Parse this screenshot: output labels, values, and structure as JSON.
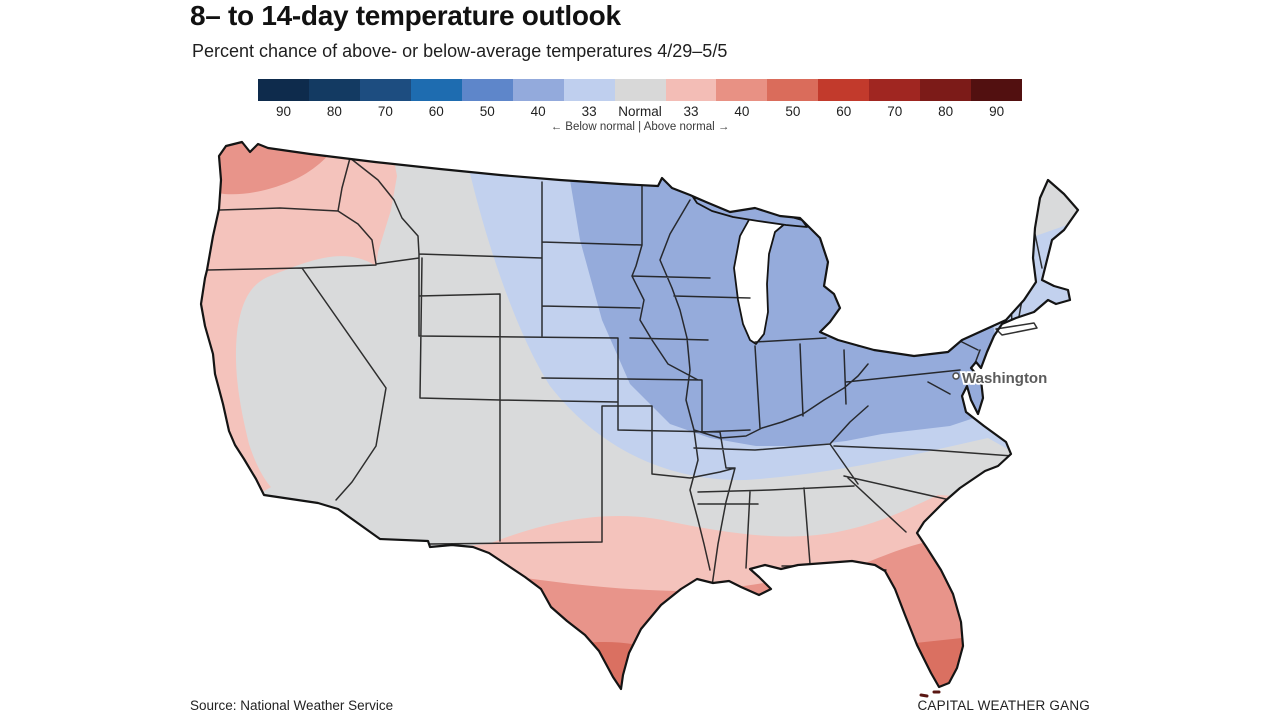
{
  "header": {
    "title": "8– to 14-day temperature outlook",
    "subtitle": "Percent chance of above- or below-average temperatures 4/29–5/5"
  },
  "legend": {
    "cells": [
      {
        "label": "90",
        "color": "#0e2b4c"
      },
      {
        "label": "80",
        "color": "#133a62"
      },
      {
        "label": "70",
        "color": "#1d4d80"
      },
      {
        "label": "60",
        "color": "#1e6cb0"
      },
      {
        "label": "50",
        "color": "#5e86ca"
      },
      {
        "label": "40",
        "color": "#93aadc"
      },
      {
        "label": "33",
        "color": "#bfcfee"
      },
      {
        "label": "Normal",
        "color": "#d8d8d8"
      },
      {
        "label": "33",
        "color": "#f3bdb6"
      },
      {
        "label": "40",
        "color": "#e89184"
      },
      {
        "label": "50",
        "color": "#da6c5b"
      },
      {
        "label": "60",
        "color": "#c23a2c"
      },
      {
        "label": "70",
        "color": "#a02621"
      },
      {
        "label": "80",
        "color": "#7c1b18"
      },
      {
        "label": "90",
        "color": "#521010"
      }
    ],
    "note": "← Below normal | Above normal →"
  },
  "map": {
    "city": {
      "label": "Washington"
    },
    "fills": {
      "base_normal": "#d9dadb",
      "below_33": "#c2d1ee",
      "below_40": "#95abdb",
      "above_33": "#f4c3bc",
      "above_40": "#e8948a",
      "above_50": "#da7061"
    },
    "regions_summary": [
      {
        "area": "Western Washington / Pacific Northwest core",
        "outlook": "40% chance above normal"
      },
      {
        "area": "Oregon, northern California coast, western Idaho",
        "outlook": "33% chance above normal"
      },
      {
        "area": "Great Basin and Southwest interior",
        "outlook": "Normal"
      },
      {
        "area": "Northern Plains, Upper Midwest, Great Lakes, Ohio Valley, Mid-Atlantic",
        "outlook": "40% chance below normal"
      },
      {
        "area": "Band from eastern Montana through Kansas and Tennessee to New England",
        "outlook": "33% chance below normal"
      },
      {
        "area": "Southern Plains and Gulf Coast into southern Georgia",
        "outlook": "33% chance above normal"
      },
      {
        "area": "Central/south Texas, Louisiana coast, Florida peninsula",
        "outlook": "40% chance above normal"
      },
      {
        "area": "Southern tip of Texas and South Florida",
        "outlook": "50% chance above normal"
      },
      {
        "area": "Northern Maine and the Southeast (Carolinas, Georgia, Alabama, Mississippi)",
        "outlook": "Normal"
      }
    ]
  },
  "footer": {
    "source": "Source: National Weather Service",
    "credit": "CAPITAL WEATHER GANG"
  }
}
